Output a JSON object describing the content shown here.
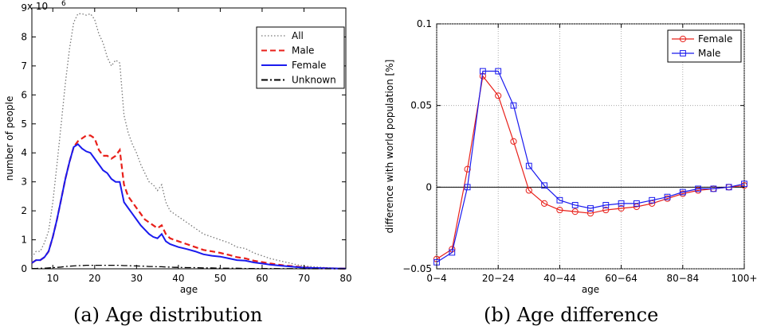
{
  "chart_data": [
    {
      "type": "line",
      "xlabel": "age",
      "ylabel": "number of people",
      "y_multiplier_label": "x 10",
      "y_multiplier_exp": "6",
      "xlim": [
        5,
        80
      ],
      "ylim": [
        0,
        9
      ],
      "xticks": [
        "10",
        "20",
        "30",
        "40",
        "50",
        "60",
        "70",
        "80"
      ],
      "yticks": [
        "0",
        "1",
        "2",
        "3",
        "4",
        "5",
        "6",
        "7",
        "8",
        "9"
      ],
      "grid": false,
      "legend_position": "top-right",
      "x": [
        5,
        6,
        7,
        8,
        9,
        10,
        11,
        12,
        13,
        14,
        15,
        16,
        17,
        18,
        19,
        20,
        21,
        22,
        23,
        24,
        25,
        26,
        27,
        28,
        29,
        30,
        31,
        32,
        33,
        34,
        35,
        36,
        37,
        38,
        39,
        40,
        42,
        44,
        46,
        48,
        50,
        52,
        54,
        56,
        58,
        60,
        62,
        65,
        68,
        70,
        72,
        75,
        78,
        80
      ],
      "series": [
        {
          "name": "All",
          "color": "#777777",
          "style": "dotted",
          "values": [
            0.4,
            0.6,
            0.6,
            0.9,
            1.3,
            2.3,
            3.6,
            5.0,
            6.4,
            7.6,
            8.5,
            8.8,
            8.8,
            8.75,
            8.8,
            8.6,
            8.1,
            7.8,
            7.3,
            7.0,
            7.2,
            7.1,
            5.3,
            4.7,
            4.3,
            4.0,
            3.6,
            3.3,
            3.0,
            2.9,
            2.7,
            2.9,
            2.3,
            2.0,
            1.9,
            1.8,
            1.6,
            1.4,
            1.2,
            1.1,
            1.0,
            0.9,
            0.75,
            0.7,
            0.55,
            0.45,
            0.35,
            0.25,
            0.15,
            0.1,
            0.07,
            0.04,
            0.02,
            0.01
          ]
        },
        {
          "name": "Male",
          "color": "#e8201a",
          "style": "dashed",
          "values": [
            0.2,
            0.3,
            0.3,
            0.4,
            0.6,
            1.1,
            1.7,
            2.4,
            3.1,
            3.7,
            4.2,
            4.4,
            4.5,
            4.6,
            4.6,
            4.5,
            4.1,
            3.9,
            3.9,
            3.8,
            3.9,
            4.1,
            2.9,
            2.5,
            2.3,
            2.1,
            1.9,
            1.7,
            1.6,
            1.5,
            1.4,
            1.5,
            1.2,
            1.05,
            1.0,
            0.95,
            0.85,
            0.75,
            0.65,
            0.6,
            0.55,
            0.48,
            0.4,
            0.36,
            0.28,
            0.23,
            0.18,
            0.12,
            0.08,
            0.05,
            0.03,
            0.02,
            0.01,
            0.005
          ]
        },
        {
          "name": "Female",
          "color": "#1a1aee",
          "style": "solid",
          "values": [
            0.2,
            0.3,
            0.3,
            0.4,
            0.6,
            1.1,
            1.7,
            2.4,
            3.1,
            3.7,
            4.2,
            4.3,
            4.15,
            4.05,
            4.0,
            3.8,
            3.6,
            3.4,
            3.3,
            3.1,
            3.0,
            3.0,
            2.3,
            2.1,
            1.9,
            1.7,
            1.5,
            1.35,
            1.2,
            1.1,
            1.05,
            1.2,
            0.95,
            0.85,
            0.8,
            0.75,
            0.68,
            0.6,
            0.5,
            0.45,
            0.42,
            0.36,
            0.3,
            0.28,
            0.22,
            0.18,
            0.14,
            0.1,
            0.06,
            0.04,
            0.03,
            0.02,
            0.01,
            0.005
          ]
        },
        {
          "name": "Unknown",
          "color": "#000000",
          "style": "dashdot",
          "values": [
            0.01,
            0.01,
            0.02,
            0.02,
            0.03,
            0.04,
            0.05,
            0.06,
            0.08,
            0.09,
            0.1,
            0.11,
            0.11,
            0.12,
            0.12,
            0.12,
            0.12,
            0.12,
            0.12,
            0.12,
            0.12,
            0.12,
            0.11,
            0.11,
            0.1,
            0.1,
            0.09,
            0.09,
            0.08,
            0.08,
            0.07,
            0.07,
            0.06,
            0.06,
            0.05,
            0.05,
            0.04,
            0.04,
            0.03,
            0.03,
            0.02,
            0.02,
            0.02,
            0.01,
            0.01,
            0.01,
            0.01,
            0.005,
            0.005,
            0.0,
            0.0,
            0.0,
            0.0,
            0.0
          ]
        }
      ]
    },
    {
      "type": "line",
      "xlabel": "age",
      "ylabel": "difference with world population [%]",
      "xlim": [
        0,
        20
      ],
      "ylim": [
        -0.05,
        0.1
      ],
      "xtick_positions": [
        0,
        4,
        8,
        12,
        16,
        20
      ],
      "xticks": [
        "0−4",
        "20−24",
        "40−44",
        "60−64",
        "80−84",
        "100+"
      ],
      "ytick_values": [
        -0.05,
        0,
        0.05,
        0.1
      ],
      "yticks": [
        "−0.05",
        "0",
        "0.05",
        "0.1"
      ],
      "grid": true,
      "legend_position": "top-right",
      "x": [
        0,
        1,
        2,
        3,
        4,
        5,
        6,
        7,
        8,
        9,
        10,
        11,
        12,
        13,
        14,
        15,
        16,
        17,
        18,
        19,
        20
      ],
      "series": [
        {
          "name": "Female",
          "color": "#e8201a",
          "marker": "circle",
          "values": [
            -0.044,
            -0.038,
            0.011,
            0.068,
            0.056,
            0.028,
            -0.002,
            -0.01,
            -0.014,
            -0.015,
            -0.016,
            -0.014,
            -0.013,
            -0.012,
            -0.01,
            -0.007,
            -0.004,
            -0.002,
            -0.001,
            0.0,
            0.001
          ]
        },
        {
          "name": "Male",
          "color": "#1a1aee",
          "marker": "square",
          "values": [
            -0.046,
            -0.04,
            0.0,
            0.071,
            0.071,
            0.05,
            0.013,
            0.001,
            -0.008,
            -0.011,
            -0.013,
            -0.011,
            -0.01,
            -0.01,
            -0.008,
            -0.006,
            -0.003,
            -0.001,
            -0.001,
            0.0,
            0.002
          ]
        }
      ]
    }
  ],
  "captions": {
    "a": "(a) Age distribution",
    "b": "(b) Age difference"
  }
}
